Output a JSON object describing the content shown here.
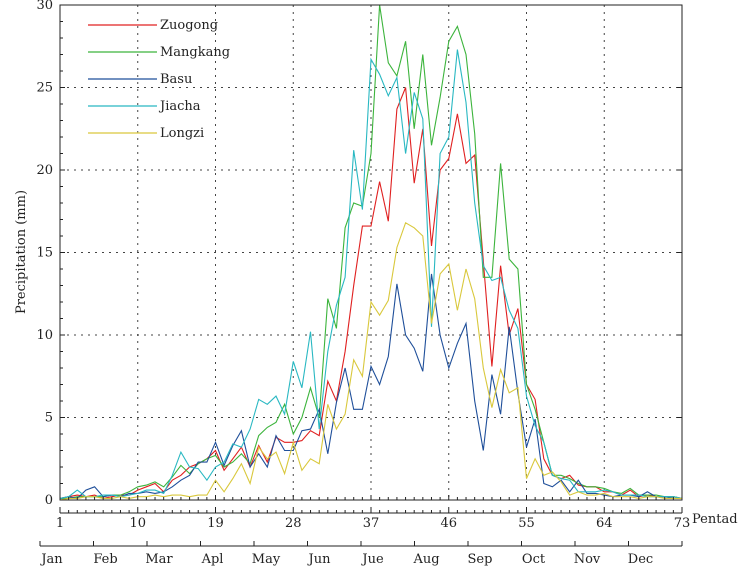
{
  "chart_data": {
    "type": "line",
    "ylabel": "Precipitation (mm)",
    "xlabel": "Pentad",
    "xlim": [
      1,
      73
    ],
    "ylim": [
      0,
      30
    ],
    "yticks": [
      0,
      5,
      10,
      15,
      20,
      25,
      30
    ],
    "xticks": [
      1,
      10,
      19,
      28,
      37,
      46,
      55,
      64,
      73
    ],
    "months": [
      "Jan",
      "Feb",
      "Mar",
      "Apl",
      "May",
      "Jun",
      "Jue",
      "Aug",
      "Sep",
      "Oct",
      "Nov",
      "Dec"
    ],
    "grid": true,
    "legend_position": "top-left",
    "series": [
      {
        "name": "Zuogong",
        "color": "#e02020",
        "values": [
          0.1,
          0.2,
          0.3,
          0.2,
          0.3,
          0.1,
          0.2,
          0.3,
          0.3,
          0.6,
          0.8,
          1,
          0.5,
          1.2,
          1.5,
          2,
          2.2,
          2.5,
          3,
          1.8,
          2.5,
          3.2,
          2,
          3.3,
          2.3,
          3.8,
          3.5,
          3.5,
          3.6,
          4.2,
          3.9,
          7.2,
          6,
          9,
          13,
          16.6,
          16.6,
          19.3,
          16.9,
          23.7,
          25,
          19.2,
          22.5,
          15.4,
          20,
          20.7,
          23.4,
          20.4,
          20.9,
          14.5,
          8.1,
          14.2,
          10,
          11.6,
          7,
          6.1,
          2.5,
          1.5,
          1.3,
          1.5,
          0.9,
          0.8,
          0.8,
          0.5,
          0.5,
          0.3,
          0.6,
          0.2,
          0.3,
          0.2,
          0.2,
          0.2,
          0.1
        ]
      },
      {
        "name": "Mangkang",
        "color": "#3cb43c",
        "values": [
          0.1,
          0.1,
          0.2,
          0.2,
          0.2,
          0.2,
          0.3,
          0.3,
          0.5,
          0.8,
          0.9,
          1.1,
          0.8,
          1.4,
          2.1,
          1.6,
          2.2,
          2.5,
          2.7,
          2,
          2.3,
          2.8,
          2.2,
          3.9,
          4.4,
          4.7,
          5.8,
          4,
          5,
          6.8,
          5,
          12.2,
          10.4,
          16.5,
          18,
          17.8,
          21,
          30,
          26.5,
          25.7,
          27.8,
          22.5,
          27,
          21.5,
          24.4,
          27.8,
          28.7,
          27,
          22.2,
          13.5,
          13.5,
          20.4,
          14.6,
          14,
          7,
          5.5,
          3.5,
          1.5,
          1.5,
          1.3,
          1,
          0.8,
          0.8,
          0.7,
          0.5,
          0.4,
          0.7,
          0.3,
          0.3,
          0.3,
          0.2,
          0.2,
          0.1
        ]
      },
      {
        "name": "Basu",
        "color": "#1f4f9a",
        "values": [
          0.1,
          0.2,
          0.1,
          0.6,
          0.8,
          0.2,
          0.3,
          0.2,
          0.4,
          0.4,
          0.5,
          0.4,
          0.5,
          0.8,
          1.2,
          1.5,
          2.3,
          2.3,
          3.5,
          2.1,
          3.3,
          4.2,
          2,
          2.8,
          2,
          3.9,
          3,
          3,
          4.2,
          4.3,
          5.5,
          2.8,
          5.9,
          8,
          5.5,
          5.5,
          8.1,
          7,
          8.7,
          13.1,
          10,
          9.2,
          7.8,
          13.7,
          10,
          8,
          9.5,
          10.7,
          6,
          3,
          7.6,
          5.2,
          10.5,
          6.5,
          3.2,
          4.9,
          1,
          0.8,
          1.2,
          0.5,
          1.2,
          0.4,
          0.4,
          0.3,
          0.2,
          0.3,
          0.3,
          0.2,
          0.5,
          0.2,
          0.2,
          0.1,
          0.1
        ]
      },
      {
        "name": "Jiacha",
        "color": "#29b8c2",
        "values": [
          0.1,
          0.2,
          0.6,
          0.2,
          0.2,
          0.3,
          0.3,
          0.2,
          0.3,
          0.4,
          0.6,
          0.6,
          0.4,
          1.5,
          2.9,
          2,
          1.9,
          1.2,
          2,
          2.3,
          3.4,
          3.2,
          4.3,
          6.1,
          5.8,
          6.3,
          5.2,
          8.4,
          6.8,
          10.2,
          4.3,
          9,
          11.8,
          13.5,
          21.2,
          17.6,
          26.7,
          25.8,
          24.5,
          25.6,
          21,
          24.7,
          23.1,
          10.5,
          21,
          22,
          27.3,
          24.1,
          18,
          14.2,
          13.3,
          13.5,
          11.5,
          10.4,
          6.3,
          4.5,
          3.5,
          1.5,
          1.3,
          1.2,
          0.5,
          0.5,
          0.5,
          0.6,
          0.5,
          0.3,
          0.3,
          0.3,
          0.2,
          0.2,
          0.2,
          0.2,
          0.1
        ]
      },
      {
        "name": "Longzi",
        "color": "#d9c83c",
        "values": [
          0,
          0.1,
          0.1,
          0.2,
          0.2,
          0.1,
          0.1,
          0.2,
          0.1,
          0.2,
          0.2,
          0.3,
          0.2,
          0.3,
          0.3,
          0.2,
          0.3,
          0.3,
          1.2,
          0.5,
          1.3,
          2.2,
          1,
          3.2,
          2.5,
          2.9,
          1.6,
          3.5,
          1.8,
          2.5,
          2.2,
          5.8,
          4.3,
          5.2,
          8.5,
          7.5,
          12,
          11.2,
          12.1,
          15.3,
          16.8,
          16.5,
          16,
          10.7,
          13.7,
          14.3,
          11.5,
          14,
          12.2,
          8,
          5.6,
          7.9,
          6.5,
          6.8,
          1.3,
          2.5,
          1.5,
          1.7,
          1.1,
          0.3,
          0.5,
          0.3,
          0.3,
          0.4,
          0.2,
          0.2,
          0.2,
          0.1,
          0.2,
          0.2,
          0.1,
          0.1,
          0.1
        ]
      }
    ]
  }
}
